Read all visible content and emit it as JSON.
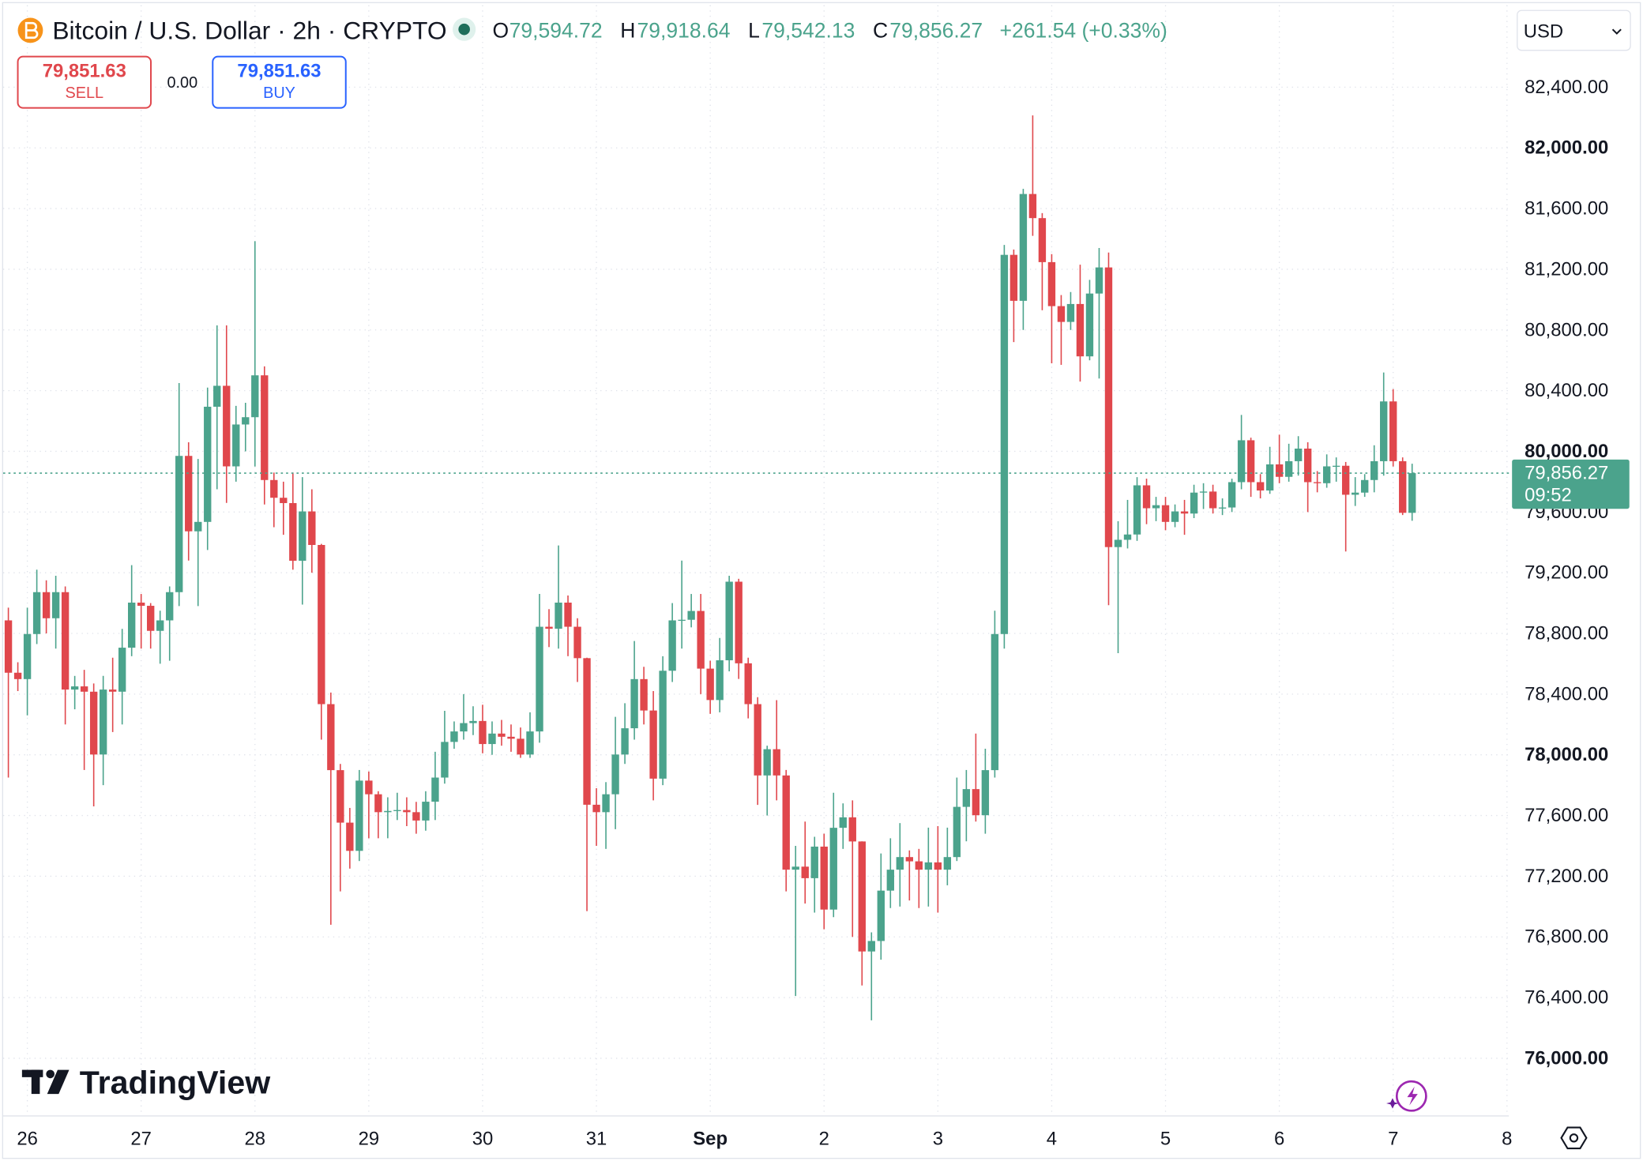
{
  "chart_data": {
    "type": "candlestick",
    "title": "Bitcoin / U.S. Dollar · 2h · CRYPTO",
    "legend": [
      {
        "label": "O",
        "value": "79,594.72"
      },
      {
        "label": "H",
        "value": "79,918.64"
      },
      {
        "label": "L",
        "value": "79,542.13"
      },
      {
        "label": "C",
        "value": "79,856.27"
      }
    ],
    "change": "+261.54 (+0.33%)",
    "open": [
      78886,
      78541,
      78499,
      78796,
      79072,
      78900,
      79072,
      78430,
      78451,
      78416,
      78002,
      78430,
      78416,
      78706,
      79003,
      78982,
      78817,
      78886,
      79072,
      79970,
      79473,
      79535,
      80294,
      80432,
      79901,
      80177,
      80225,
      80501,
      79811,
      79694,
      79659,
      79279,
      79604,
      79383,
      78334,
      77899,
      77553,
      77367,
      77830,
      77740,
      77622,
      77630,
      77636,
      77622,
      77567,
      77691,
      77850,
      78085,
      78154,
      78209,
      78223,
      78071,
      78140,
      78119,
      78106,
      78002,
      78154,
      78844,
      78831,
      79003,
      78844,
      78637,
      77671,
      77622,
      77740,
      78002,
      78175,
      78499,
      78292,
      77843,
      78554,
      78886,
      78890,
      78948,
      78568,
      78361,
      78623,
      79141,
      78603,
      78334,
      77864,
      78037,
      77864,
      77243,
      77263,
      77187,
      77395,
      76980,
      77519,
      77588,
      77429,
      76704,
      76773,
      77105,
      77243,
      77326,
      77298,
      77243,
      77291,
      77243,
      77326,
      77657,
      77774,
      77602,
      77899,
      78796,
      81295,
      80992,
      81696,
      81537,
      81247,
      80957,
      80853,
      80971,
      80626,
      81040,
      81212,
      79369,
      79417,
      79452,
      79776,
      79625,
      79645,
      79535,
      79604,
      79590,
      79728,
      79735,
      79625,
      79630,
      79797,
      80073,
      79797,
      79742,
      79914,
      79832,
      79935,
      80018,
      79797,
      79790,
      79901,
      79905,
      79714,
      79728,
      79811,
      79935,
      80329,
      79935,
      79594.72
    ],
    "high": [
      78970,
      78610,
      78970,
      79220,
      79150,
      79180,
      79110,
      78520,
      78560,
      78470,
      78520,
      78640,
      78830,
      79250,
      79060,
      79000,
      78950,
      79110,
      80450,
      80060,
      79950,
      80420,
      80830,
      80830,
      80300,
      80320,
      81385,
      80560,
      79860,
      79800,
      79860,
      79830,
      79750,
      79390,
      78410,
      77940,
      77650,
      77900,
      77890,
      77760,
      77720,
      77750,
      77720,
      77690,
      77760,
      78020,
      78290,
      78220,
      78400,
      78320,
      78330,
      78220,
      78230,
      78200,
      78180,
      78280,
      79060,
      78960,
      79380,
      79050,
      78900,
      78640,
      77780,
      77820,
      78250,
      78340,
      78750,
      78580,
      78420,
      78650,
      79000,
      79280,
      79060,
      79060,
      78620,
      78770,
      79180,
      79160,
      78640,
      78380,
      78060,
      78360,
      77900,
      77400,
      77560,
      77460,
      77480,
      77750,
      77680,
      77700,
      77430,
      76830,
      77350,
      77450,
      77550,
      77370,
      77380,
      77520,
      77530,
      77520,
      77850,
      77900,
      78140,
      78040,
      78950,
      81360,
      81330,
      81730,
      82214,
      81570,
      81300,
      81030,
      81050,
      81230,
      81130,
      81340,
      81310,
      79540,
      79680,
      79830,
      79820,
      79700,
      79700,
      79650,
      79680,
      79780,
      79790,
      79780,
      79690,
      79820,
      80240,
      80090,
      79850,
      80030,
      80110,
      80050,
      80100,
      80060,
      79870,
      79980,
      79960,
      79930,
      79830,
      79850,
      80040,
      80520,
      80410,
      79960,
      79918.64
    ],
    "low": [
      77850,
      78420,
      78260,
      78730,
      78800,
      78700,
      78200,
      78300,
      77900,
      77660,
      77800,
      78150,
      78200,
      78650,
      78700,
      78700,
      78600,
      78620,
      78980,
      79280,
      78980,
      79350,
      79750,
      79660,
      79800,
      80000,
      79900,
      79650,
      79500,
      79450,
      79220,
      78990,
      79200,
      78100,
      76880,
      77100,
      77250,
      77300,
      77450,
      77450,
      77450,
      77570,
      77530,
      77480,
      77500,
      77570,
      77810,
      78040,
      78100,
      78130,
      78010,
      78000,
      78060,
      78020,
      77980,
      77980,
      78080,
      78710,
      78700,
      78650,
      78480,
      76970,
      77400,
      77380,
      77510,
      77940,
      78100,
      78200,
      77700,
      77800,
      78480,
      78700,
      78840,
      78400,
      78270,
      78280,
      78550,
      78500,
      78240,
      77670,
      77600,
      77700,
      77100,
      76410,
      77020,
      76960,
      76850,
      76930,
      77380,
      76800,
      76480,
      76250,
      76650,
      76990,
      77000,
      77040,
      76990,
      77000,
      76960,
      77140,
      77300,
      77430,
      77560,
      77480,
      77850,
      78700,
      80720,
      80800,
      81420,
      80930,
      80580,
      80570,
      80800,
      80460,
      80600,
      80480,
      78986,
      78670,
      79360,
      79410,
      79520,
      79540,
      79480,
      79500,
      79450,
      79560,
      79620,
      79590,
      79580,
      79600,
      79750,
      79700,
      79690,
      79720,
      79790,
      79800,
      79840,
      79600,
      79730,
      79760,
      79800,
      79340,
      79640,
      79700,
      79730,
      79840,
      79900,
      79580,
      79542.13
    ],
    "close": [
      78541,
      78499,
      78796,
      79072,
      78900,
      79072,
      78430,
      78451,
      78416,
      78002,
      78430,
      78416,
      78706,
      79003,
      78982,
      78817,
      78886,
      79072,
      79970,
      79473,
      79535,
      80294,
      80432,
      79901,
      80177,
      80225,
      80501,
      79811,
      79694,
      79659,
      79279,
      79604,
      79383,
      78334,
      77899,
      77553,
      77367,
      77830,
      77740,
      77622,
      77630,
      77636,
      77622,
      77567,
      77691,
      77850,
      78085,
      78154,
      78209,
      78223,
      78071,
      78140,
      78119,
      78106,
      78002,
      78154,
      78844,
      78831,
      79003,
      78844,
      78637,
      77671,
      77622,
      77740,
      78002,
      78175,
      78499,
      78292,
      77843,
      78554,
      78886,
      78890,
      78948,
      78568,
      78361,
      78623,
      79141,
      78603,
      78334,
      77864,
      78037,
      77864,
      77243,
      77263,
      77187,
      77395,
      76980,
      77519,
      77588,
      77429,
      76704,
      76773,
      77105,
      77243,
      77326,
      77298,
      77243,
      77291,
      77243,
      77326,
      77657,
      77774,
      77602,
      77899,
      78796,
      81295,
      80992,
      81696,
      81537,
      81247,
      80957,
      80853,
      80971,
      80626,
      81040,
      81212,
      79369,
      79417,
      79452,
      79776,
      79625,
      79645,
      79535,
      79604,
      79590,
      79728,
      79735,
      79625,
      79630,
      79797,
      80073,
      79797,
      79742,
      79914,
      79832,
      79935,
      80018,
      79797,
      79790,
      79901,
      79905,
      79714,
      79728,
      79811,
      79935,
      80329,
      79935,
      79594.72,
      79856.27
    ],
    "xlim": [
      -0.55,
      158.2
    ],
    "xticks": [
      {
        "value": 2,
        "label": "26"
      },
      {
        "value": 14,
        "label": "27"
      },
      {
        "value": 26,
        "label": "28"
      },
      {
        "value": 38,
        "label": "29"
      },
      {
        "value": 50,
        "label": "30"
      },
      {
        "value": 62,
        "label": "31"
      },
      {
        "value": 74,
        "label": "Sep"
      },
      {
        "value": 86,
        "label": "2"
      },
      {
        "value": 98,
        "label": "3"
      },
      {
        "value": 110,
        "label": "4"
      },
      {
        "value": 122,
        "label": "5"
      },
      {
        "value": 134,
        "label": "6"
      },
      {
        "value": 146,
        "label": "7"
      },
      {
        "value": 158,
        "label": "8"
      }
    ],
    "ylim": [
      75620,
      82940
    ],
    "yticks": [
      {
        "value": 76000,
        "label": "76,000.00"
      },
      {
        "value": 76400,
        "label": "76,400.00"
      },
      {
        "value": 76800,
        "label": "76,800.00"
      },
      {
        "value": 77200,
        "label": "77,200.00"
      },
      {
        "value": 77600,
        "label": "77,600.00"
      },
      {
        "value": 78000,
        "label": "78,000.00"
      },
      {
        "value": 78400,
        "label": "78,400.00"
      },
      {
        "value": 78800,
        "label": "78,800.00"
      },
      {
        "value": 79200,
        "label": "79,200.00"
      },
      {
        "value": 79600,
        "label": "79,600.00"
      },
      {
        "value": 80000,
        "label": "80,000.00"
      },
      {
        "value": 80400,
        "label": "80,400.00"
      },
      {
        "value": 80800,
        "label": "80,800.00"
      },
      {
        "value": 81200,
        "label": "81,200.00"
      },
      {
        "value": 81600,
        "label": "81,600.00"
      },
      {
        "value": 82000,
        "label": "82,000.00"
      },
      {
        "value": 82400,
        "label": "82,400.00"
      }
    ],
    "grid": true,
    "up_color": "#4ba38c",
    "down_color": "#e0474c",
    "last_price_label": "79,856.27",
    "countdown": "09:52"
  },
  "trade_panel": {
    "sell_price": "79,851.63",
    "sell": "SELL",
    "spread": "0.00",
    "buy_price": "79,851.63",
    "buy": "BUY"
  },
  "currency": "USD",
  "logo": "TradingView"
}
